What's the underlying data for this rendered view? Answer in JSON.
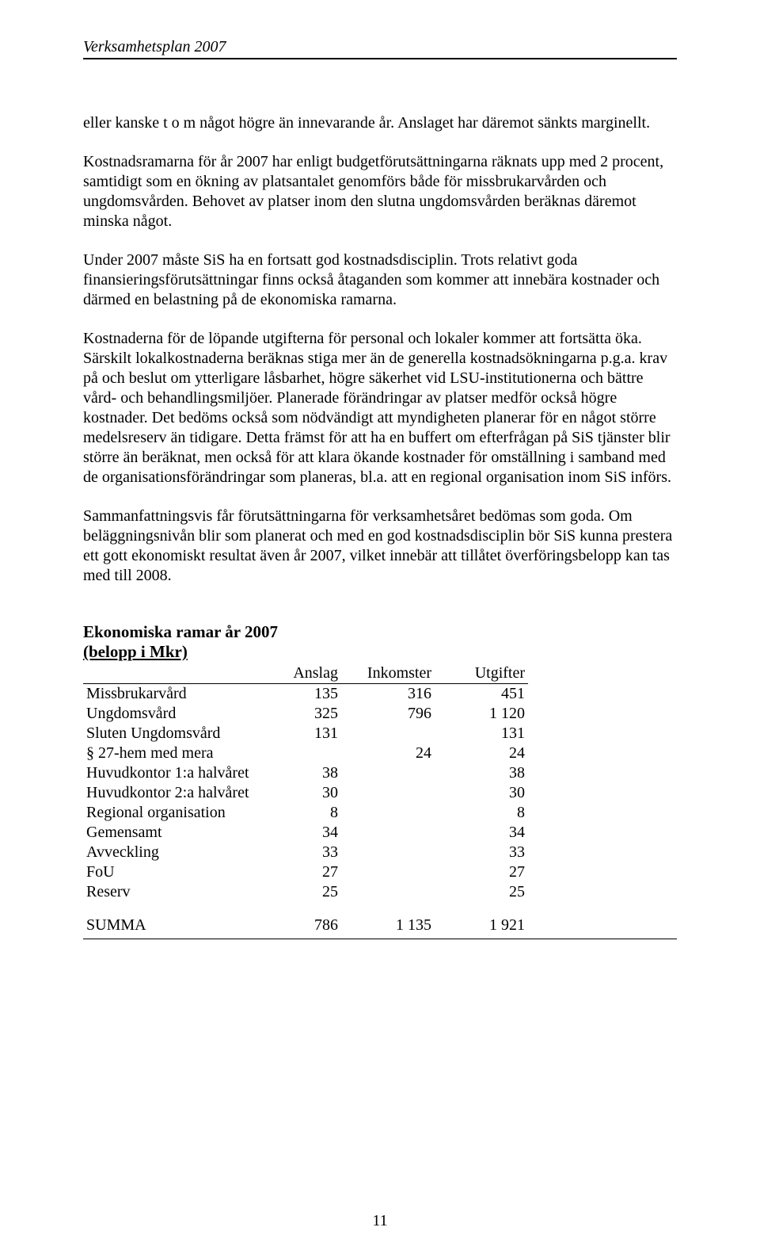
{
  "header": "Verksamhetsplan 2007",
  "paragraphs": {
    "p1": "eller kanske t o m något högre än innevarande år. Anslaget har däremot sänkts marginellt.",
    "p2": "Kostnadsramarna för år 2007 har enligt budgetförutsättningarna räknats upp med 2 procent, samtidigt som en ökning av platsantalet genomförs både för missbrukarvården och ungdomsvården. Behovet av platser inom den slutna ungdomsvården beräknas däremot minska något.",
    "p3": "Under 2007 måste SiS ha en fortsatt god kostnadsdisciplin. Trots relativt goda finansieringsförutsättningar finns också åtaganden som kommer att innebära kostnader och därmed en belastning på de ekonomiska ramarna.",
    "p4": "Kostnaderna för de löpande utgifterna för personal och lokaler kommer att fortsätta öka. Särskilt lokalkostnaderna beräknas stiga mer än de generella kostnadsökningarna p.g.a. krav på och beslut om ytterligare låsbarhet, högre säkerhet vid LSU-institutionerna och bättre vård- och behandlingsmiljöer. Planerade förändringar av platser medför också högre kostnader. Det bedöms också som nödvändigt att myndigheten planerar för en något större medelsreserv än tidigare. Detta främst för att ha en buffert om efterfrågan på SiS tjänster blir större än beräknat, men också för att klara ökande kostnader för omställning i samband med de organisationsförändringar som planeras, bl.a. att en regional organisation inom SiS införs.",
    "p5": "Sammanfattningsvis får förutsättningarna för verksamhetsåret bedömas som goda. Om beläggningsnivån blir som planerat och med en god kostnadsdisciplin bör SiS kunna prestera ett gott ekonomiskt resultat även år 2007, vilket innebär att tillåtet överföringsbelopp kan tas med till 2008."
  },
  "table": {
    "title": "Ekonomiska ramar år 2007",
    "subtitle": "(belopp i Mkr)",
    "columns": [
      "",
      "Anslag",
      "Inkomster",
      "Utgifter"
    ],
    "rows": [
      {
        "label": "Missbrukarvård",
        "anslag": "135",
        "inkomster": "316",
        "utgifter": "451"
      },
      {
        "label": "Ungdomsvård",
        "anslag": "325",
        "inkomster": "796",
        "utgifter": "1 120"
      },
      {
        "label": "Sluten Ungdomsvård",
        "anslag": "131",
        "inkomster": "",
        "utgifter": "131"
      },
      {
        "label": "§ 27-hem med mera",
        "anslag": "",
        "inkomster": "24",
        "utgifter": "24"
      },
      {
        "label": "Huvudkontor 1:a halvåret",
        "anslag": "38",
        "inkomster": "",
        "utgifter": "38"
      },
      {
        "label": "Huvudkontor 2:a halvåret",
        "anslag": "30",
        "inkomster": "",
        "utgifter": "30"
      },
      {
        "label": "Regional organisation",
        "anslag": "8",
        "inkomster": "",
        "utgifter": "8"
      },
      {
        "label": "Gemensamt",
        "anslag": "34",
        "inkomster": "",
        "utgifter": "34"
      },
      {
        "label": "Avveckling",
        "anslag": "33",
        "inkomster": "",
        "utgifter": "33"
      },
      {
        "label": "FoU",
        "anslag": "27",
        "inkomster": "",
        "utgifter": "27"
      },
      {
        "label": "Reserv",
        "anslag": "25",
        "inkomster": "",
        "utgifter": "25"
      }
    ],
    "sum": {
      "label": "SUMMA",
      "anslag": "786",
      "inkomster": "1 135",
      "utgifter": "1 921"
    }
  },
  "page_number": "11"
}
